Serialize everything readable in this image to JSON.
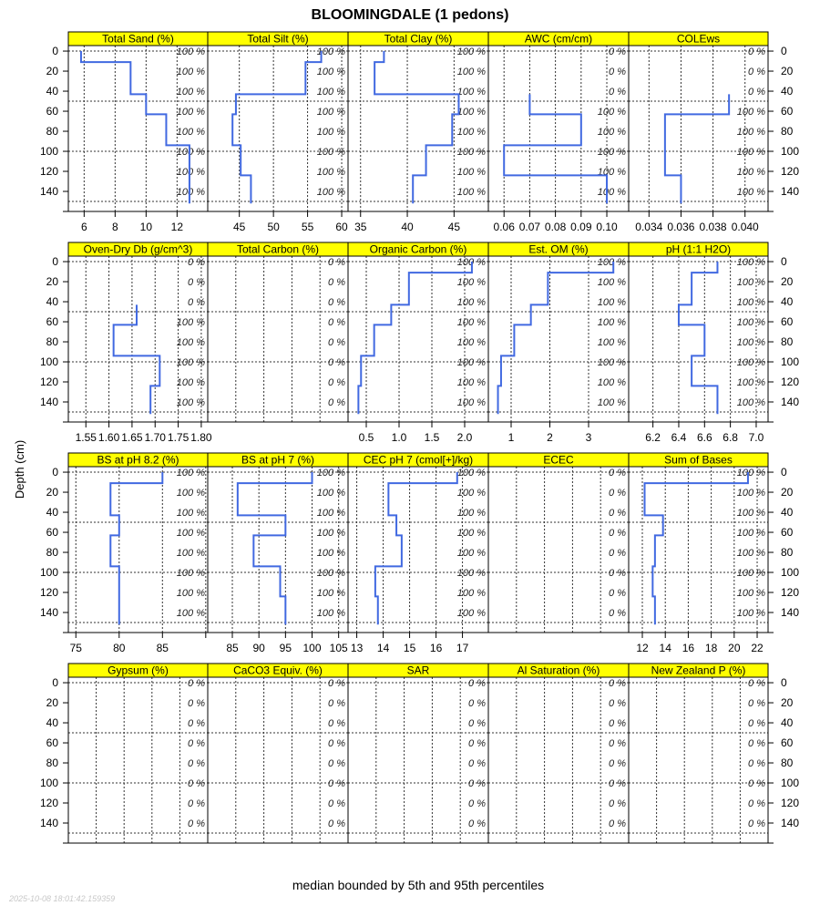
{
  "chart_data": {
    "type": "line",
    "title": "BLOOMINGDALE (1 pedons)",
    "ylabel": "Depth (cm)",
    "footer": "median bounded by 5th and 95th percentiles",
    "timestamp": "2025-10-08 18:01:42.159359",
    "ylim": [
      -5.5,
      160
    ],
    "yticks": [
      0,
      20,
      40,
      60,
      80,
      100,
      120,
      140,
      160
    ],
    "ytick_labels": [
      "0",
      "20",
      "40",
      "60",
      "80",
      "100",
      "120",
      "140",
      ""
    ],
    "hgrid": [
      0,
      50,
      100,
      150
    ],
    "pct_depths": [
      0,
      20,
      40,
      60,
      80,
      100,
      120,
      140
    ],
    "horizon_depths": [
      0,
      11,
      43,
      63,
      94,
      124,
      152
    ],
    "line_color": "#4169E1",
    "strip_color": "#FFFF00",
    "panels": [
      {
        "name": "Total Sand (%)",
        "xlim": [
          4.98,
          13.98
        ],
        "ticks": [
          6,
          8,
          10,
          12
        ],
        "tick_labels": [
          "6",
          "8",
          "10",
          "12"
        ],
        "values": [
          5.8,
          9,
          10,
          11.3,
          12.8,
          12.8
        ],
        "pct": [
          "100 %",
          "100 %",
          "100 %",
          "100 %",
          "100 %",
          "100 %",
          "100 %",
          "100 %"
        ]
      },
      {
        "name": "Total Silt (%)",
        "xlim": [
          40.37,
          60.93
        ],
        "ticks": [
          45,
          50,
          55,
          60
        ],
        "tick_labels": [
          "45",
          "50",
          "55",
          "60"
        ],
        "values": [
          57,
          54.7,
          44.5,
          44,
          45.2,
          46.7
        ],
        "pct": [
          "100 %",
          "100 %",
          "100 %",
          "100 %",
          "100 %",
          "100 %",
          "100 %",
          "100 %"
        ]
      },
      {
        "name": "Total Clay (%)",
        "xlim": [
          33.66,
          48.67
        ],
        "ticks": [
          35,
          40,
          45
        ],
        "tick_labels": [
          "35",
          "40",
          "45"
        ],
        "values": [
          37.5,
          36.5,
          45.5,
          44.8,
          42,
          40.6
        ],
        "pct": [
          "100 %",
          "100 %",
          "100 %",
          "100 %",
          "100 %",
          "100 %",
          "100 %",
          "100 %"
        ]
      },
      {
        "name": "AWC (cm/cm)",
        "xlim": [
          0.0539,
          0.1085
        ],
        "ticks": [
          0.06,
          0.07,
          0.08,
          0.09,
          0.1
        ],
        "tick_labels": [
          "0.06",
          "0.07",
          "0.08",
          "0.09",
          "0.10"
        ],
        "values": [
          null,
          null,
          0.07,
          0.09,
          0.06,
          0.1
        ],
        "pct": [
          "0 %",
          "0 %",
          "0 %",
          "100 %",
          "100 %",
          "100 %",
          "100 %",
          "100 %"
        ]
      },
      {
        "name": "COLEws",
        "xlim": [
          0.03273,
          0.04144
        ],
        "ticks": [
          0.034,
          0.036,
          0.038,
          0.04
        ],
        "tick_labels": [
          "0.034",
          "0.036",
          "0.038",
          "0.040"
        ],
        "values": [
          null,
          null,
          0.039,
          0.035,
          0.035,
          0.036
        ],
        "pct": [
          "0 %",
          "0 %",
          "0 %",
          "100 %",
          "100 %",
          "100 %",
          "100 %",
          "100 %"
        ]
      },
      {
        "name": "Oven-Dry Db (g/cm^3)",
        "xlim": [
          1.512,
          1.814
        ],
        "ticks": [
          1.55,
          1.6,
          1.65,
          1.7,
          1.75,
          1.8
        ],
        "tick_labels": [
          "1.55",
          "1.60",
          "1.65",
          "1.70",
          "1.75",
          "1.80"
        ],
        "values": [
          null,
          null,
          1.66,
          1.61,
          1.71,
          1.69
        ],
        "pct": [
          "0 %",
          "0 %",
          "0 %",
          "100 %",
          "100 %",
          "100 %",
          "100 %",
          "100 %"
        ]
      },
      {
        "name": "Total Carbon (%)",
        "xlim": null,
        "ticks": [],
        "tick_labels": [],
        "values": [
          null,
          null,
          null,
          null,
          null,
          null
        ],
        "pct": [
          "0 %",
          "0 %",
          "0 %",
          "0 %",
          "0 %",
          "0 %",
          "0 %",
          "0 %"
        ]
      },
      {
        "name": "Organic Carbon (%)",
        "xlim": [
          0.222,
          2.361
        ],
        "ticks": [
          0.5,
          1.0,
          1.5,
          2.0
        ],
        "tick_labels": [
          "0.5",
          "1.0",
          "1.5",
          "2.0"
        ],
        "values": [
          2.11,
          1.15,
          0.88,
          0.62,
          0.42,
          0.38
        ],
        "pct": [
          "100 %",
          "100 %",
          "100 %",
          "100 %",
          "100 %",
          "100 %",
          "100 %",
          "100 %"
        ]
      },
      {
        "name": "Est. OM (%)",
        "xlim": [
          0.412,
          4.035
        ],
        "ticks": [
          1,
          2,
          3
        ],
        "tick_labels": [
          "1",
          "2",
          "3"
        ],
        "values": [
          3.64,
          1.95,
          1.51,
          1.08,
          0.74,
          0.66
        ],
        "pct": [
          "100 %",
          "100 %",
          "100 %",
          "100 %",
          "100 %",
          "100 %",
          "100 %",
          "100 %"
        ]
      },
      {
        "name": "pH (1:1 H2O)",
        "xlim": [
          6.012,
          7.092
        ],
        "ticks": [
          6.2,
          6.4,
          6.6,
          6.8,
          7.0
        ],
        "tick_labels": [
          "6.2",
          "6.4",
          "6.6",
          "6.8",
          "7.0"
        ],
        "values": [
          6.7,
          6.5,
          6.4,
          6.6,
          6.5,
          6.7
        ],
        "pct": [
          "100 %",
          "100 %",
          "100 %",
          "100 %",
          "100 %",
          "100 %",
          "100 %",
          "100 %"
        ]
      },
      {
        "name": "BS at pH 8.2 (%)",
        "xlim": [
          74.13,
          90.23
        ],
        "ticks": [
          75,
          80,
          85,
          90
        ],
        "tick_labels": [
          "75",
          "80",
          "85",
          ""
        ],
        "values": [
          85,
          79,
          80,
          79,
          80,
          80
        ],
        "pct": [
          "100 %",
          "100 %",
          "100 %",
          "100 %",
          "100 %",
          "100 %",
          "100 %",
          "100 %"
        ]
      },
      {
        "name": "BS at pH 7 (%)",
        "xlim": [
          80.37,
          106.77
        ],
        "ticks": [
          85,
          90,
          95,
          100,
          105
        ],
        "tick_labels": [
          "85",
          "90",
          "95",
          "100",
          "105"
        ],
        "values": [
          100,
          86,
          95,
          89,
          94,
          95
        ],
        "pct": [
          "100 %",
          "100 %",
          "100 %",
          "100 %",
          "100 %",
          "100 %",
          "100 %",
          "100 %"
        ]
      },
      {
        "name": "CEC pH 7 (cmol[+]/kg)",
        "xlim": [
          12.67,
          17.98
        ],
        "ticks": [
          13,
          14,
          15,
          16,
          17
        ],
        "tick_labels": [
          "13",
          "14",
          "15",
          "16",
          "17"
        ],
        "values": [
          16.8,
          14.2,
          14.5,
          14.7,
          13.7,
          13.8
        ],
        "pct": [
          "100 %",
          "100 %",
          "100 %",
          "100 %",
          "100 %",
          "100 %",
          "100 %",
          "100 %"
        ]
      },
      {
        "name": "ECEC",
        "xlim": null,
        "ticks": [],
        "tick_labels": [],
        "values": [
          null,
          null,
          null,
          null,
          null,
          null
        ],
        "pct": [
          "0 %",
          "0 %",
          "0 %",
          "0 %",
          "0 %",
          "0 %",
          "0 %",
          "0 %"
        ]
      },
      {
        "name": "Sum of Bases",
        "xlim": [
          10.81,
          22.95
        ],
        "ticks": [
          12,
          14,
          16,
          18,
          20,
          22
        ],
        "tick_labels": [
          "12",
          "14",
          "16",
          "18",
          "20",
          "22"
        ],
        "values": [
          21.2,
          12.2,
          13.8,
          13.1,
          12.9,
          13.1
        ],
        "pct": [
          "100 %",
          "100 %",
          "100 %",
          "100 %",
          "100 %",
          "100 %",
          "100 %",
          "100 %"
        ]
      },
      {
        "name": "Gypsum (%)",
        "xlim": null,
        "ticks": [],
        "tick_labels": [],
        "values": [
          null,
          null,
          null,
          null,
          null,
          null
        ],
        "pct": [
          "0 %",
          "0 %",
          "0 %",
          "0 %",
          "0 %",
          "0 %",
          "0 %",
          "0 %"
        ]
      },
      {
        "name": "CaCO3 Equiv. (%)",
        "xlim": null,
        "ticks": [],
        "tick_labels": [],
        "values": [
          null,
          null,
          null,
          null,
          null,
          null
        ],
        "pct": [
          "0 %",
          "0 %",
          "0 %",
          "0 %",
          "0 %",
          "0 %",
          "0 %",
          "0 %"
        ]
      },
      {
        "name": "SAR",
        "xlim": null,
        "ticks": [],
        "tick_labels": [],
        "values": [
          null,
          null,
          null,
          null,
          null,
          null
        ],
        "pct": [
          "0 %",
          "0 %",
          "0 %",
          "0 %",
          "0 %",
          "0 %",
          "0 %",
          "0 %"
        ]
      },
      {
        "name": "Al Saturation (%)",
        "xlim": null,
        "ticks": [],
        "tick_labels": [],
        "values": [
          null,
          null,
          null,
          null,
          null,
          null
        ],
        "pct": [
          "0 %",
          "0 %",
          "0 %",
          "0 %",
          "0 %",
          "0 %",
          "0 %",
          "0 %"
        ]
      },
      {
        "name": "New Zealand P (%)",
        "xlim": null,
        "ticks": [],
        "tick_labels": [],
        "values": [
          null,
          null,
          null,
          null,
          null,
          null
        ],
        "pct": [
          "0 %",
          "0 %",
          "0 %",
          "0 %",
          "0 %",
          "0 %",
          "0 %",
          "0 %"
        ]
      }
    ]
  }
}
